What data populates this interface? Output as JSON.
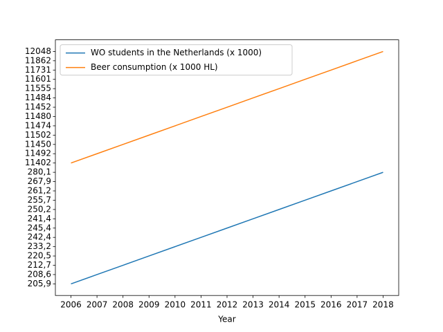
{
  "chart_data": {
    "type": "line",
    "xlabel": "Year",
    "categories": [
      "2006",
      "2007",
      "2008",
      "2009",
      "2010",
      "2011",
      "2012",
      "2013",
      "2014",
      "2015",
      "2016",
      "2017",
      "2018"
    ],
    "series": [
      {
        "name": "WO students in the Netherlands (x 1000)",
        "color": "#1f77b4",
        "values": [
          0,
          1,
          2,
          3,
          4,
          5,
          6,
          7,
          8,
          9,
          10,
          11,
          12
        ]
      },
      {
        "name": "Beer consumption (x 1000 HL)",
        "color": "#ff7f0e",
        "values": [
          13,
          14,
          15,
          16,
          17,
          18,
          19,
          20,
          21,
          22,
          23,
          24,
          25
        ]
      }
    ],
    "ylim": [
      -1.25,
      26.25
    ],
    "yticks": [
      {
        "value": 0,
        "label": "205,9"
      },
      {
        "value": 1,
        "label": "208,6"
      },
      {
        "value": 2,
        "label": "212,7"
      },
      {
        "value": 3,
        "label": "220,5"
      },
      {
        "value": 4,
        "label": "233,2"
      },
      {
        "value": 5,
        "label": "242,4"
      },
      {
        "value": 6,
        "label": "245,4"
      },
      {
        "value": 7,
        "label": "241,4"
      },
      {
        "value": 8,
        "label": "250,2"
      },
      {
        "value": 9,
        "label": "255,7"
      },
      {
        "value": 10,
        "label": "261,2"
      },
      {
        "value": 11,
        "label": "267,9"
      },
      {
        "value": 12,
        "label": "280,1"
      },
      {
        "value": 13,
        "label": "11402"
      },
      {
        "value": 14,
        "label": "11492"
      },
      {
        "value": 15,
        "label": "11450"
      },
      {
        "value": 16,
        "label": "11502"
      },
      {
        "value": 17,
        "label": "11474"
      },
      {
        "value": 18,
        "label": "11480"
      },
      {
        "value": 19,
        "label": "11452"
      },
      {
        "value": 20,
        "label": "11484"
      },
      {
        "value": 21,
        "label": "11555"
      },
      {
        "value": 22,
        "label": "11601"
      },
      {
        "value": 23,
        "label": "11731"
      },
      {
        "value": 24,
        "label": "11862"
      },
      {
        "value": 25,
        "label": "12048"
      }
    ],
    "legend": "upper left",
    "grid": false
  }
}
